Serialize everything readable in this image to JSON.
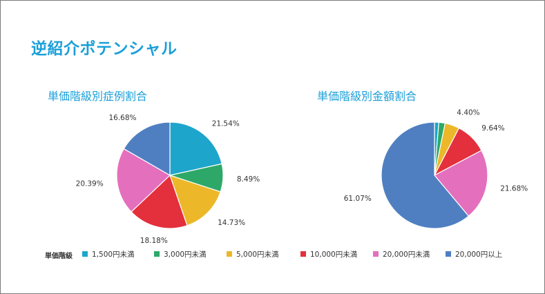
{
  "page_title": "逆紹介ポテンシャル",
  "legend": {
    "title": "単価階級",
    "items": [
      {
        "label": "1,500円未満",
        "color": "#1ea5cb"
      },
      {
        "label": "3,000円未満",
        "color": "#2ea868"
      },
      {
        "label": "5,000円未満",
        "color": "#ecb82a"
      },
      {
        "label": "10,000円未満",
        "color": "#e3303c"
      },
      {
        "label": "20,000円未満",
        "color": "#e46fbd"
      },
      {
        "label": "20,000円以上",
        "color": "#4f7fc1"
      }
    ]
  },
  "chart_data": [
    {
      "type": "pie",
      "title": "単価階級別症例割合",
      "categories": [
        "1,500円未満",
        "3,000円未満",
        "5,000円未満",
        "10,000円未満",
        "20,000円未満",
        "20,000円以上"
      ],
      "values": [
        21.54,
        8.49,
        14.73,
        18.18,
        20.39,
        16.68
      ],
      "labels": [
        "21.54%",
        "8.49%",
        "14.73%",
        "18.18%",
        "20.39%",
        "16.68%"
      ],
      "show_labels": [
        true,
        true,
        true,
        true,
        true,
        true
      ]
    },
    {
      "type": "pie",
      "title": "単価階級別金額割合",
      "categories": [
        "1,500円未満",
        "3,000円未満",
        "5,000円未満",
        "10,000円未満",
        "20,000円未満",
        "20,000円以上"
      ],
      "values": [
        1.31,
        1.9,
        4.4,
        9.64,
        21.68,
        61.07
      ],
      "labels": [
        "1.31%",
        "1.90%",
        "4.40%",
        "9.64%",
        "21.68%",
        "61.07%"
      ],
      "show_labels": [
        false,
        false,
        true,
        true,
        true,
        true
      ]
    }
  ]
}
